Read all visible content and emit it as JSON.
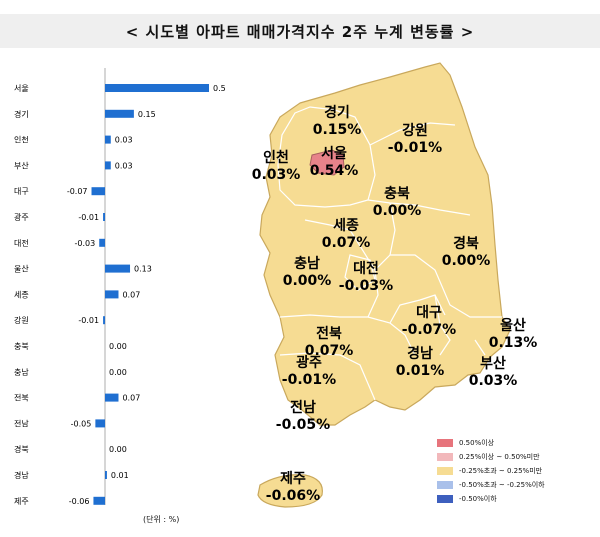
{
  "title": "< 시도별 아파트 매매가격지수 2주 누계 변동률 >",
  "unit_label": "(단위 : %)",
  "colors": {
    "bar": "#1f6fd1",
    "land": "#f6dc93",
    "land_border": "#c9a85c",
    "seoul": "#e7838a",
    "strong_neg": "#4468c4"
  },
  "chart_data": {
    "type": "bar",
    "orientation": "horizontal",
    "title": "< 시도별 아파트 매매가격지수 2주 누계 변동률 >",
    "categories": [
      "서울",
      "경기",
      "인천",
      "부산",
      "대구",
      "광주",
      "대전",
      "울산",
      "세종",
      "강원",
      "충북",
      "충남",
      "전북",
      "전남",
      "경북",
      "경남",
      "제주"
    ],
    "values": [
      0.54,
      0.15,
      0.03,
      0.03,
      -0.07,
      -0.01,
      -0.03,
      0.13,
      0.07,
      -0.01,
      0.0,
      0.0,
      0.07,
      -0.05,
      0.0,
      0.01,
      -0.06
    ],
    "value_labels": [
      "0.54",
      "0.15",
      "0.03",
      "0.03",
      "-0.07",
      "-0.01",
      "-0.03",
      "0.13",
      "0.07",
      "-0.01",
      "0.00",
      "0.00",
      "0.07",
      "-0.05",
      "0.00",
      "0.01",
      "-0.06"
    ],
    "xlim": [
      -0.12,
      0.6
    ],
    "ylabel": "(단위 : %)"
  },
  "map": {
    "regions": [
      {
        "name": "경기",
        "value": "0.15%"
      },
      {
        "name": "강원",
        "value": "-0.01%"
      },
      {
        "name": "인천",
        "value": "0.03%"
      },
      {
        "name": "서울",
        "value": "0.54%"
      },
      {
        "name": "충북",
        "value": "0.00%"
      },
      {
        "name": "세종",
        "value": "0.07%"
      },
      {
        "name": "경북",
        "value": "0.00%"
      },
      {
        "name": "충남",
        "value": "0.00%"
      },
      {
        "name": "대전",
        "value": "-0.03%"
      },
      {
        "name": "대구",
        "value": "-0.07%"
      },
      {
        "name": "울산",
        "value": "0.13%"
      },
      {
        "name": "전북",
        "value": "0.07%"
      },
      {
        "name": "광주",
        "value": "-0.01%"
      },
      {
        "name": "경남",
        "value": "0.01%"
      },
      {
        "name": "부산",
        "value": "0.03%"
      },
      {
        "name": "전남",
        "value": "-0.05%"
      },
      {
        "name": "제주",
        "value": "-0.06%"
      }
    ]
  },
  "legend": [
    {
      "label": "0.50%이상",
      "color": "#e7747c"
    },
    {
      "label": "0.25%이상 ~ 0.50%미만",
      "color": "#f2b8bb"
    },
    {
      "label": "-0.25%초과 ~ 0.25%미만",
      "color": "#f6dc93"
    },
    {
      "label": "-0.50%초과 ~ -0.25%이하",
      "color": "#a9c0ea"
    },
    {
      "label": "-0.50%이하",
      "color": "#3d5fbe"
    }
  ]
}
